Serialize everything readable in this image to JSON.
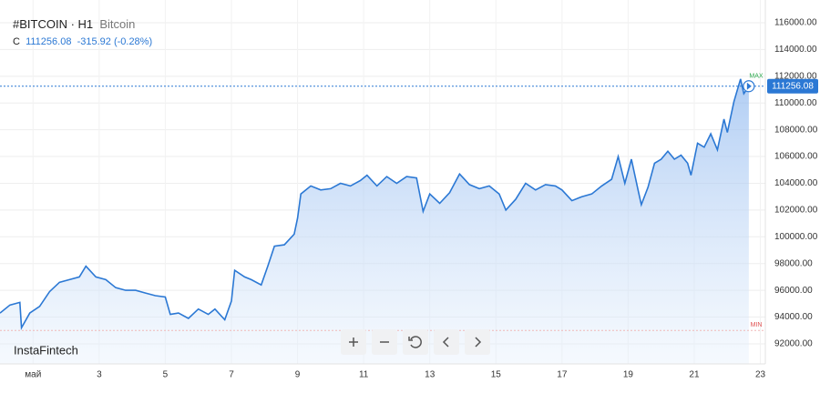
{
  "chart_data": {
    "type": "line",
    "title": "#BITCOIN · H1",
    "subtitle": "Bitcoin",
    "price_prefix": "C",
    "last": 111256.08,
    "change": "-315.92 (-0.28%)",
    "watermark": "InstaFintech",
    "max_label": "MAX",
    "min_label": "MIN",
    "color": "#2b78d4",
    "grid": true,
    "x": [
      0.0,
      0.3,
      0.6,
      0.65,
      0.9,
      1.2,
      1.5,
      1.8,
      2.1,
      2.4,
      2.6,
      2.9,
      3.2,
      3.5,
      3.8,
      4.1,
      4.4,
      4.7,
      5.0,
      5.15,
      5.4,
      5.7,
      6.0,
      6.3,
      6.5,
      6.8,
      7.0,
      7.1,
      7.4,
      7.6,
      7.9,
      8.1,
      8.3,
      8.6,
      8.9,
      9.0,
      9.1,
      9.4,
      9.7,
      10.0,
      10.3,
      10.6,
      10.9,
      11.1,
      11.4,
      11.7,
      12.0,
      12.3,
      12.6,
      12.8,
      13.0,
      13.3,
      13.6,
      13.9,
      14.2,
      14.5,
      14.8,
      15.1,
      15.3,
      15.6,
      15.9,
      16.2,
      16.5,
      16.8,
      17.0,
      17.3,
      17.6,
      17.9,
      18.2,
      18.5,
      18.7,
      18.9,
      19.1,
      19.3,
      19.4,
      19.6,
      19.8,
      20.0,
      20.2,
      20.4,
      20.6,
      20.8,
      20.9,
      21.1,
      21.3,
      21.5,
      21.7,
      21.9,
      22.0,
      22.2,
      22.4,
      22.5,
      22.65
    ],
    "values": [
      94300,
      94900,
      95100,
      93200,
      94300,
      94800,
      95900,
      96600,
      96800,
      97000,
      97800,
      97000,
      96800,
      96200,
      96000,
      96000,
      95800,
      95600,
      95500,
      94200,
      94300,
      93900,
      94600,
      94200,
      94600,
      93800,
      95200,
      97500,
      97000,
      96800,
      96400,
      97800,
      99300,
      99400,
      100200,
      101400,
      103200,
      103800,
      103500,
      103600,
      104000,
      103800,
      104200,
      104600,
      103800,
      104500,
      104000,
      104500,
      104400,
      101900,
      103200,
      102500,
      103300,
      104700,
      103900,
      103600,
      103800,
      103200,
      102000,
      102800,
      104000,
      103500,
      103900,
      103800,
      103500,
      102700,
      103000,
      103200,
      103800,
      104300,
      106000,
      104000,
      105800,
      103500,
      102400,
      103700,
      105500,
      105800,
      106400,
      105800,
      106100,
      105500,
      104600,
      107000,
      106700,
      107700,
      106500,
      108800,
      107800,
      110100,
      111800,
      110700,
      111256.08
    ],
    "xlim": [
      0,
      23.15
    ],
    "xticks": [
      {
        "value": 1,
        "label": "май"
      },
      3,
      5,
      7,
      9,
      11,
      13,
      15,
      17,
      19,
      21,
      23
    ],
    "ylim": [
      90500,
      117700
    ],
    "yticks": [
      {
        "value": 92000,
        "label": "92000.00"
      },
      {
        "value": 94000,
        "label": "94000.00"
      },
      {
        "value": 96000,
        "label": "96000.00"
      },
      {
        "value": 98000,
        "label": "98000.00"
      },
      {
        "value": 100000,
        "label": "100000.00"
      },
      {
        "value": 102000,
        "label": "102000.00"
      },
      {
        "value": 104000,
        "label": "104000.00"
      },
      {
        "value": 106000,
        "label": "106000.00"
      },
      {
        "value": 108000,
        "label": "108000.00"
      },
      {
        "value": 110000,
        "label": "110000.00"
      },
      {
        "value": 112000,
        "label": "112000.00"
      },
      {
        "value": 114000,
        "label": "114000.00"
      },
      {
        "value": 116000,
        "label": "116000.00"
      }
    ]
  }
}
